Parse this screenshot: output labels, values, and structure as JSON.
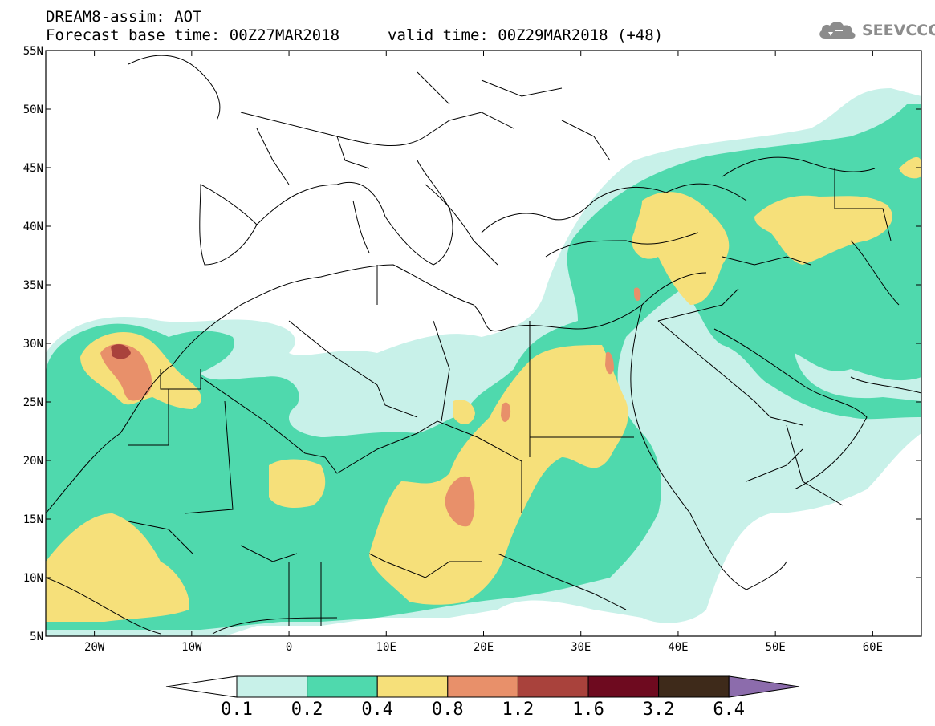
{
  "header": {
    "title_line1": "DREAM8-assim: AOT",
    "title_line2": "Forecast base time: 00Z27MAR2018",
    "valid_time": "valid time: 00Z29MAR2018 (+48)",
    "logo_text": "SEEVCCC",
    "logo_icon": "cloud-icon"
  },
  "map": {
    "lon_range": [
      -25,
      65
    ],
    "lat_range": [
      5,
      55
    ],
    "lat_labels": [
      "55N",
      "50N",
      "45N",
      "40N",
      "35N",
      "30N",
      "25N",
      "20N",
      "15N",
      "10N",
      "5N"
    ],
    "lon_labels": [
      "20W",
      "10W",
      "0",
      "10E",
      "20E",
      "30E",
      "40E",
      "50E",
      "60E"
    ]
  },
  "colorbar": {
    "labels": [
      "0.1",
      "0.2",
      "0.4",
      "0.8",
      "1.2",
      "1.6",
      "3.2",
      "6.4"
    ],
    "colors": [
      "#ffffff",
      "#c8f1e9",
      "#4fd9ad",
      "#f6e07a",
      "#e8906a",
      "#a9423c",
      "#6e0a1f",
      "#3e2a1a",
      "#8c6cac"
    ]
  }
}
